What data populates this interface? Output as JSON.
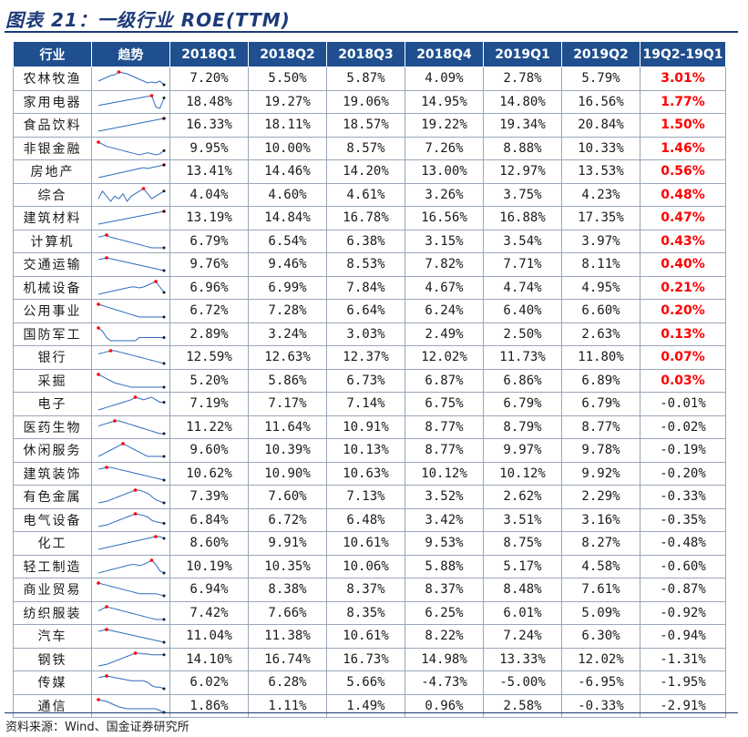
{
  "title": "图表 21：一级行业 ROE(TTM)",
  "source": "资料来源：Wind、国金证券研究所",
  "headers": [
    "行业",
    "趋势",
    "2018Q1",
    "2018Q2",
    "2018Q3",
    "2018Q4",
    "2019Q1",
    "2019Q2",
    "19Q2-19Q1"
  ],
  "colors": {
    "header_bg": "#1f4f8f",
    "positive_change": "#ff0000",
    "sparkline": "#2e6bbd",
    "marker": "#ff0000"
  },
  "rows": [
    {
      "name": "农林牧渔",
      "q": [
        "7.20%",
        "5.50%",
        "5.87%",
        "4.09%",
        "2.78%",
        "5.79%"
      ],
      "change": "3.01%",
      "positive": true,
      "trend": [
        5,
        6,
        7,
        8,
        8.5,
        10,
        9.5,
        9,
        8,
        7,
        6,
        5,
        4,
        4.5,
        4,
        5,
        3
      ]
    },
    {
      "name": "家用电器",
      "q": [
        "18.48%",
        "19.27%",
        "19.06%",
        "14.95%",
        "14.80%",
        "16.56%"
      ],
      "change": "1.77%",
      "positive": true,
      "trend": [
        4,
        4.5,
        5,
        5.5,
        6,
        6.5,
        7,
        7.5,
        8,
        8.5,
        9,
        9.5,
        10,
        10.5,
        3,
        2,
        9
      ]
    },
    {
      "name": "食品饮料",
      "q": [
        "16.33%",
        "18.11%",
        "18.57%",
        "19.22%",
        "19.34%",
        "20.84%"
      ],
      "change": "1.50%",
      "positive": true,
      "trend": [
        2,
        2.5,
        3,
        3.5,
        4,
        4.5,
        5,
        5.5,
        6,
        6.5,
        7,
        7.5,
        8,
        8.5,
        9,
        9.5,
        10
      ]
    },
    {
      "name": "非银金融",
      "q": [
        "9.95%",
        "10.00%",
        "8.57%",
        "7.26%",
        "8.88%",
        "10.33%"
      ],
      "change": "1.46%",
      "positive": true,
      "trend": [
        9,
        8,
        7,
        6.5,
        6,
        5.5,
        5,
        4.5,
        4,
        3.5,
        3,
        3.5,
        4,
        3.5,
        3,
        3.5,
        5
      ]
    },
    {
      "name": "房地产",
      "q": [
        "13.41%",
        "14.46%",
        "14.20%",
        "13.00%",
        "12.97%",
        "13.53%"
      ],
      "change": "0.56%",
      "positive": true,
      "trend": [
        3,
        3.5,
        4,
        4.5,
        5,
        5.5,
        6,
        6.5,
        7,
        7.5,
        8,
        8.5,
        8,
        8.5,
        9,
        9.5,
        10
      ]
    },
    {
      "name": "综合",
      "q": [
        "4.04%",
        "4.60%",
        "4.61%",
        "3.26%",
        "3.75%",
        "4.23%"
      ],
      "change": "0.48%",
      "positive": true,
      "trend": [
        5,
        8,
        6,
        4,
        6,
        5,
        7,
        4,
        6,
        7,
        8,
        9,
        7,
        5,
        6,
        7,
        8
      ]
    },
    {
      "name": "建筑材料",
      "q": [
        "13.19%",
        "14.84%",
        "16.78%",
        "16.56%",
        "16.88%",
        "17.35%"
      ],
      "change": "0.47%",
      "positive": true,
      "trend": [
        2,
        2.5,
        3,
        3.5,
        4,
        4.5,
        5,
        5.5,
        6,
        6.5,
        7,
        7.5,
        8,
        8.5,
        9,
        9.5,
        10
      ]
    },
    {
      "name": "计算机",
      "q": [
        "6.79%",
        "6.54%",
        "6.38%",
        "3.15%",
        "3.54%",
        "3.97%"
      ],
      "change": "0.43%",
      "positive": true,
      "trend": [
        9,
        9.5,
        10,
        9,
        8.5,
        8,
        7.5,
        7,
        6.5,
        6,
        5.5,
        5,
        4.5,
        4,
        4,
        4,
        4
      ]
    },
    {
      "name": "交通运输",
      "q": [
        "9.76%",
        "9.46%",
        "8.53%",
        "7.82%",
        "7.71%",
        "8.11%"
      ],
      "change": "0.40%",
      "positive": true,
      "trend": [
        9,
        9.5,
        10,
        9.5,
        9,
        8.5,
        8,
        7.5,
        7,
        6.5,
        6,
        5.5,
        5,
        4.5,
        4,
        3.5,
        3
      ]
    },
    {
      "name": "机械设备",
      "q": [
        "6.96%",
        "6.99%",
        "7.84%",
        "4.67%",
        "4.74%",
        "4.95%"
      ],
      "change": "0.21%",
      "positive": true,
      "trend": [
        3,
        3.5,
        4,
        4.5,
        5,
        5.5,
        6,
        6.5,
        7,
        7,
        6.5,
        7,
        8,
        9,
        10,
        7,
        4
      ]
    },
    {
      "name": "公用事业",
      "q": [
        "6.72%",
        "7.28%",
        "6.64%",
        "6.24%",
        "6.40%",
        "6.60%"
      ],
      "change": "0.20%",
      "positive": true,
      "trend": [
        9,
        8.5,
        8,
        7.5,
        7,
        6.5,
        6,
        5.5,
        5,
        4.5,
        4,
        4,
        4,
        4,
        4,
        4,
        4
      ]
    },
    {
      "name": "国防军工",
      "q": [
        "2.89%",
        "3.24%",
        "3.03%",
        "2.49%",
        "2.50%",
        "2.63%"
      ],
      "change": "0.13%",
      "positive": true,
      "trend": [
        8,
        7,
        5,
        4,
        4,
        4,
        4,
        4,
        4,
        4,
        5,
        5,
        5,
        5,
        5,
        5,
        5
      ]
    },
    {
      "name": "银行",
      "q": [
        "12.59%",
        "12.63%",
        "12.37%",
        "12.02%",
        "11.73%",
        "11.80%"
      ],
      "change": "0.07%",
      "positive": true,
      "trend": [
        8,
        8.5,
        9,
        9.5,
        9.5,
        9,
        8.5,
        8,
        7.5,
        7,
        6.5,
        6,
        5.5,
        5,
        4.5,
        4,
        3.5
      ]
    },
    {
      "name": "采掘",
      "q": [
        "5.20%",
        "5.86%",
        "6.73%",
        "6.87%",
        "6.86%",
        "6.89%"
      ],
      "change": "0.03%",
      "positive": true,
      "trend": [
        10,
        9,
        8,
        7,
        6,
        5.5,
        5,
        4.5,
        4,
        4,
        4,
        4,
        4,
        4,
        4,
        4,
        4
      ]
    },
    {
      "name": "电子",
      "q": [
        "7.19%",
        "7.17%",
        "7.14%",
        "6.75%",
        "6.79%",
        "6.79%"
      ],
      "change": "-0.01%",
      "positive": false,
      "trend": [
        3,
        3.5,
        4,
        4.5,
        5,
        5.5,
        6,
        6.5,
        7,
        8,
        7.5,
        7,
        7.5,
        8,
        7,
        6,
        6
      ]
    },
    {
      "name": "医药生物",
      "q": [
        "11.22%",
        "11.64%",
        "10.91%",
        "8.77%",
        "8.79%",
        "8.77%"
      ],
      "change": "-0.02%",
      "positive": false,
      "trend": [
        8,
        8.5,
        9,
        9.5,
        10,
        10,
        9.5,
        9,
        8.5,
        8,
        7.5,
        7,
        6.5,
        6,
        5.5,
        5,
        5
      ]
    },
    {
      "name": "休闲服务",
      "q": [
        "9.60%",
        "10.39%",
        "10.13%",
        "8.77%",
        "9.97%",
        "9.78%"
      ],
      "change": "-0.19%",
      "positive": false,
      "trend": [
        7,
        7.5,
        8,
        8.5,
        9,
        9.5,
        10,
        9.5,
        9,
        8.5,
        8,
        7.5,
        7,
        7,
        7,
        7,
        7
      ]
    },
    {
      "name": "建筑装饰",
      "q": [
        "10.62%",
        "10.90%",
        "10.63%",
        "10.12%",
        "10.12%",
        "9.92%"
      ],
      "change": "-0.20%",
      "positive": false,
      "trend": [
        9,
        9.5,
        10,
        10,
        9.5,
        9,
        8.5,
        8,
        7.5,
        7,
        6.5,
        6,
        5.5,
        5,
        4.5,
        4,
        3.5
      ]
    },
    {
      "name": "有色金属",
      "q": [
        "7.39%",
        "7.60%",
        "7.13%",
        "3.52%",
        "2.62%",
        "2.29%"
      ],
      "change": "-0.33%",
      "positive": false,
      "trend": [
        2,
        2.5,
        3,
        4,
        5,
        6,
        7,
        8,
        9,
        10,
        10,
        9,
        8,
        6,
        4,
        3,
        2
      ]
    },
    {
      "name": "电气设备",
      "q": [
        "6.84%",
        "6.72%",
        "6.48%",
        "3.42%",
        "3.51%",
        "3.16%"
      ],
      "change": "-0.35%",
      "positive": false,
      "trend": [
        2,
        2.5,
        3,
        4,
        5,
        6,
        7,
        8,
        9,
        10,
        9.5,
        9,
        8,
        6,
        5,
        4.5,
        4
      ]
    },
    {
      "name": "化工",
      "q": [
        "8.60%",
        "9.91%",
        "10.61%",
        "9.53%",
        "8.75%",
        "8.27%"
      ],
      "change": "-0.48%",
      "positive": false,
      "trend": [
        2,
        2.5,
        3,
        3.5,
        4,
        4.5,
        5,
        5.5,
        6,
        6.5,
        7,
        7.5,
        8,
        8.5,
        9,
        9,
        8
      ]
    },
    {
      "name": "轻工制造",
      "q": [
        "10.19%",
        "10.35%",
        "10.06%",
        "5.88%",
        "5.17%",
        "4.58%"
      ],
      "change": "-0.60%",
      "positive": false,
      "trend": [
        4,
        4.5,
        5,
        5.5,
        6,
        6.5,
        7,
        7.5,
        8,
        8,
        7.5,
        8,
        9,
        10,
        8,
        5,
        4
      ]
    },
    {
      "name": "商业贸易",
      "q": [
        "6.94%",
        "8.38%",
        "8.37%",
        "8.37%",
        "8.48%",
        "7.61%"
      ],
      "change": "-0.87%",
      "positive": false,
      "trend": [
        9,
        8.5,
        8,
        7.5,
        7,
        6.5,
        6,
        5.5,
        5,
        4.5,
        4,
        4,
        4,
        4,
        4,
        3.5,
        3
      ]
    },
    {
      "name": "纺织服装",
      "q": [
        "7.42%",
        "7.66%",
        "8.35%",
        "6.25%",
        "6.01%",
        "5.09%"
      ],
      "change": "-0.92%",
      "positive": false,
      "trend": [
        8,
        9,
        10,
        9.5,
        9,
        8.5,
        8,
        7.5,
        7,
        6.5,
        6,
        5.5,
        5,
        4.5,
        4,
        4,
        4
      ]
    },
    {
      "name": "汽车",
      "q": [
        "11.04%",
        "11.38%",
        "10.61%",
        "8.22%",
        "7.24%",
        "6.30%"
      ],
      "change": "-0.94%",
      "positive": false,
      "trend": [
        9,
        9.5,
        10,
        9.5,
        9,
        8.5,
        8,
        7.5,
        7,
        6.5,
        6,
        5.5,
        5,
        4.5,
        4,
        3.5,
        3
      ]
    },
    {
      "name": "钢铁",
      "q": [
        "14.10%",
        "16.74%",
        "16.73%",
        "14.98%",
        "13.33%",
        "12.02%"
      ],
      "change": "-1.31%",
      "positive": false,
      "trend": [
        2,
        2.5,
        3,
        4,
        5,
        6,
        7,
        8,
        9,
        10,
        10,
        9.5,
        9.5,
        9,
        9,
        9,
        9
      ]
    },
    {
      "name": "传媒",
      "q": [
        "6.02%",
        "6.28%",
        "5.66%",
        "-4.73%",
        "-5.00%",
        "-6.95%"
      ],
      "change": "-1.95%",
      "positive": false,
      "trend": [
        9,
        9.5,
        10,
        9.5,
        9,
        8.5,
        8,
        7.5,
        7,
        7,
        7,
        7,
        6,
        4,
        3,
        3,
        2
      ]
    },
    {
      "name": "通信",
      "q": [
        "1.86%",
        "1.11%",
        "1.49%",
        "0.96%",
        "2.58%",
        "-0.33%"
      ],
      "change": "-2.91%",
      "positive": false,
      "trend": [
        10,
        9.5,
        9,
        8,
        7,
        6,
        5.5,
        5,
        5,
        5,
        5,
        5,
        5,
        5,
        5,
        4,
        3
      ]
    }
  ]
}
